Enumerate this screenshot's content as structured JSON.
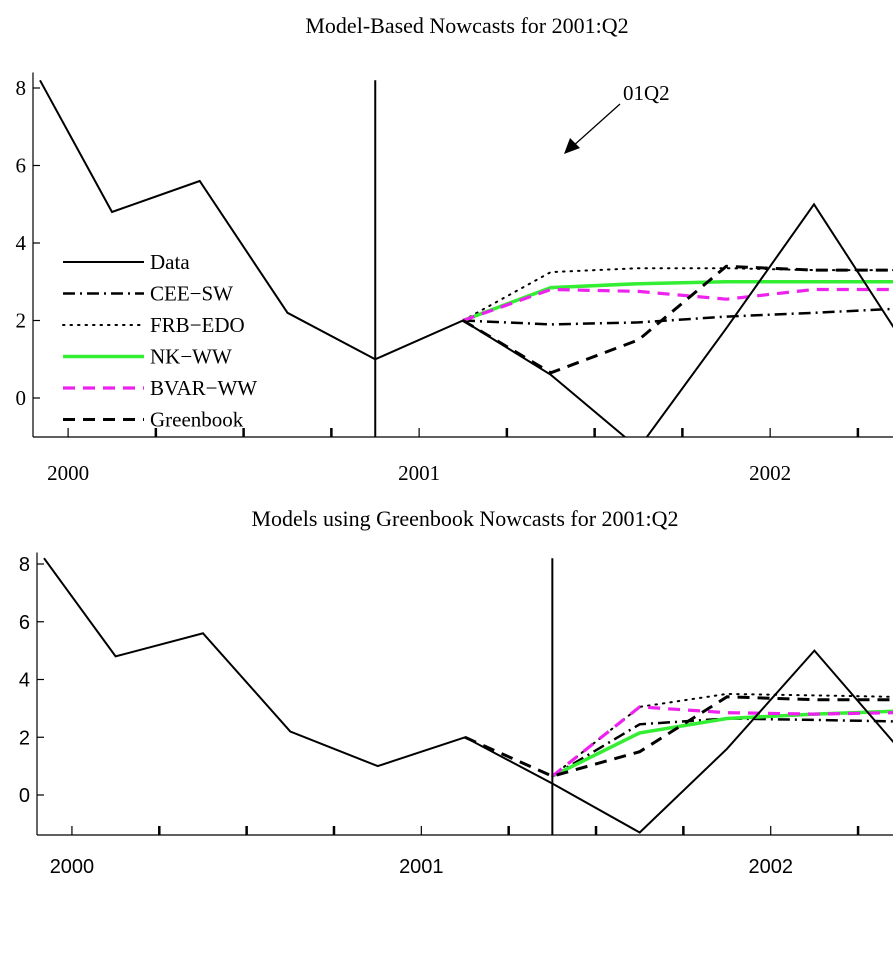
{
  "chart_data": [
    {
      "type": "line",
      "title": "Model-Based Nowcasts for 2001:Q2",
      "xlabel": "",
      "ylabel": "",
      "xlim": [
        1999.9,
        2002.35
      ],
      "ylim": [
        -1.0,
        8.4
      ],
      "x_ticks": [
        {
          "value": 2000,
          "label": "2000"
        },
        {
          "value": 2001,
          "label": "2001"
        },
        {
          "value": 2002,
          "label": "2002"
        }
      ],
      "x_minor_ticks": [
        2000.25,
        2000.5,
        2000.75,
        2001.25,
        2001.5,
        2001.75,
        2002.25
      ],
      "y_ticks": [
        0,
        2,
        4,
        6,
        8
      ],
      "vline": {
        "x": 2000.875,
        "annotation": "01Q2"
      },
      "grid": false,
      "legend_placement": "left",
      "series": [
        {
          "name": "Data",
          "color": "#000000",
          "style": "solid",
          "x": [
            1999.92,
            2000.125,
            2000.375,
            2000.625,
            2000.875,
            2001.125,
            2001.375,
            2001.625,
            2001.875,
            2002.125,
            2002.375
          ],
          "values": [
            8.2,
            4.8,
            5.6,
            2.2,
            1.0,
            2.0,
            0.6,
            -1.3,
            1.8,
            5.0,
            1.5
          ]
        },
        {
          "name": "CEE−SW",
          "color": "#000000",
          "style": "dashdot",
          "x": [
            2001.125,
            2001.375,
            2001.625,
            2001.875,
            2002.125,
            2002.35
          ],
          "values": [
            2.0,
            1.9,
            1.95,
            2.1,
            2.2,
            2.3
          ]
        },
        {
          "name": "FRB−EDO",
          "color": "#000000",
          "style": "dotted",
          "x": [
            2001.125,
            2001.375,
            2001.625,
            2001.875,
            2002.125,
            2002.35
          ],
          "values": [
            2.0,
            3.25,
            3.35,
            3.35,
            3.3,
            3.3
          ]
        },
        {
          "name": "NK−WW",
          "color": "#33ee33",
          "style": "solid",
          "x": [
            2001.125,
            2001.375,
            2001.625,
            2001.875,
            2002.125,
            2002.35
          ],
          "values": [
            2.0,
            2.85,
            2.95,
            3.0,
            3.0,
            3.0
          ]
        },
        {
          "name": "BVAR−WW",
          "color": "#ee22ee",
          "style": "dashed",
          "x": [
            2001.125,
            2001.375,
            2001.625,
            2001.875,
            2002.125,
            2002.35
          ],
          "values": [
            2.0,
            2.8,
            2.75,
            2.55,
            2.8,
            2.8
          ]
        },
        {
          "name": "Greenbook",
          "color": "#000000",
          "style": "dashed",
          "x": [
            2001.125,
            2001.375,
            2001.625,
            2001.875,
            2002.125,
            2002.35
          ],
          "values": [
            2.0,
            0.65,
            1.5,
            3.4,
            3.3,
            3.3
          ]
        }
      ]
    },
    {
      "type": "line",
      "title": "Models using Greenbook Nowcasts for 2001:Q2",
      "xlabel": "",
      "ylabel": "",
      "xlim": [
        1999.9,
        2002.35
      ],
      "ylim": [
        -1.0,
        8.4
      ],
      "x_ticks": [
        {
          "value": 2000,
          "label": "2000"
        },
        {
          "value": 2001,
          "label": "2001"
        },
        {
          "value": 2002,
          "label": "2002"
        }
      ],
      "x_minor_ticks": [
        2000.25,
        2000.5,
        2000.75,
        2001.25,
        2001.5,
        2001.75,
        2002.25
      ],
      "y_ticks": [
        0,
        2,
        4,
        6,
        8
      ],
      "vline": {
        "x": 2001.375
      },
      "grid": false,
      "series": [
        {
          "name": "Data",
          "color": "#000000",
          "style": "solid",
          "x": [
            1999.92,
            2000.125,
            2000.375,
            2000.625,
            2000.875,
            2001.125,
            2001.375,
            2001.625,
            2001.875,
            2002.125,
            2002.375
          ],
          "values": [
            8.2,
            4.8,
            5.6,
            2.2,
            1.0,
            2.0,
            0.4,
            -1.3,
            1.6,
            5.0,
            1.5
          ]
        },
        {
          "name": "CEE−SW",
          "color": "#000000",
          "style": "dashdot",
          "x": [
            2001.375,
            2001.625,
            2001.875,
            2002.125,
            2002.35
          ],
          "values": [
            0.65,
            2.45,
            2.65,
            2.6,
            2.55
          ]
        },
        {
          "name": "FRB−EDO",
          "color": "#000000",
          "style": "dotted",
          "x": [
            2001.375,
            2001.625,
            2001.875,
            2002.125,
            2002.35
          ],
          "values": [
            0.65,
            3.05,
            3.5,
            3.45,
            3.4
          ]
        },
        {
          "name": "NK−WW",
          "color": "#33ee33",
          "style": "solid",
          "x": [
            2001.375,
            2001.625,
            2001.875,
            2002.125,
            2002.35
          ],
          "values": [
            0.65,
            2.15,
            2.65,
            2.8,
            2.9
          ]
        },
        {
          "name": "BVAR−WW",
          "color": "#ee22ee",
          "style": "dashed",
          "x": [
            2001.375,
            2001.625,
            2001.875,
            2002.125,
            2002.35
          ],
          "values": [
            0.65,
            3.05,
            2.85,
            2.8,
            2.85
          ]
        },
        {
          "name": "Greenbook",
          "color": "#000000",
          "style": "dashed",
          "x": [
            2001.125,
            2001.375,
            2001.625,
            2001.875,
            2002.125,
            2002.35
          ],
          "values": [
            2.0,
            0.65,
            1.5,
            3.4,
            3.3,
            3.3
          ]
        }
      ]
    }
  ]
}
